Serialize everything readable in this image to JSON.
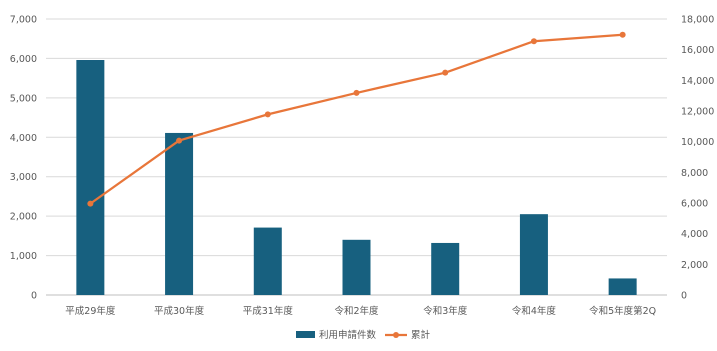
{
  "chart_data": {
    "type": "bar",
    "categories": [
      "平成29年度",
      "平成30年度",
      "平成31年度",
      "令和2年度",
      "令和3年度",
      "令和4年度",
      "令和5年度第2Q"
    ],
    "series": [
      {
        "name": "利用申請件数",
        "type": "bar",
        "axis": "left",
        "color": "#17607f",
        "values": [
          5960,
          4110,
          1710,
          1400,
          1320,
          2050,
          420
        ]
      },
      {
        "name": "累計",
        "type": "line",
        "axis": "right",
        "color": "#e8763a",
        "values": [
          5960,
          10070,
          11780,
          13180,
          14500,
          16550,
          16970
        ]
      }
    ],
    "y_left": {
      "min": 0,
      "max": 7000,
      "step": 1000
    },
    "y_right": {
      "min": 0,
      "max": 18000,
      "step": 2000
    },
    "grid": true,
    "legend_position": "bottom",
    "title": "",
    "xlabel": "",
    "ylabel": ""
  }
}
